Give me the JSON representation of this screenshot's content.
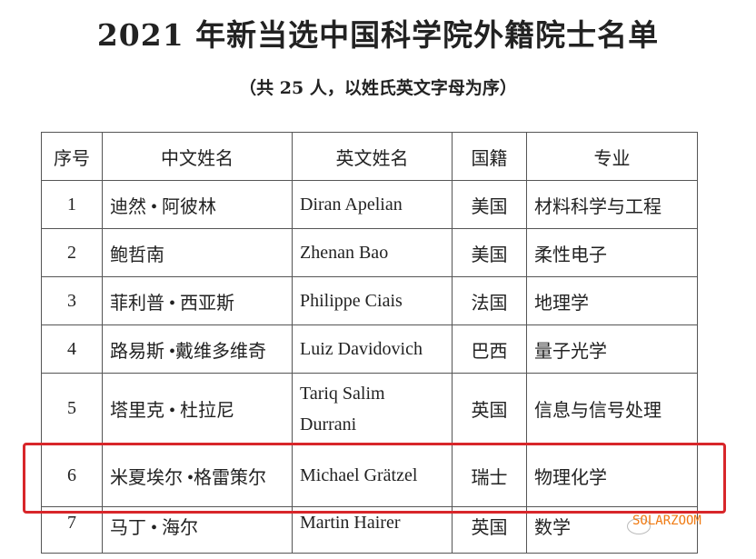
{
  "title": "2021 年新当选中国科学院外籍院士名单",
  "subtitle": "（共 25 人，以姓氏英文字母为序）",
  "headers": [
    "序号",
    "中文姓名",
    "英文姓名",
    "国籍",
    "专业"
  ],
  "rows": [
    [
      "1",
      "迪然 • 阿彼林",
      "Diran Apelian",
      "美国",
      "材料科学与工程"
    ],
    [
      "2",
      "鲍哲南",
      "Zhenan Bao",
      "美国",
      "柔性电子"
    ],
    [
      "3",
      "菲利普 • 西亚斯",
      "Philippe Ciais",
      "法国",
      "地理学"
    ],
    [
      "4",
      "路易斯 •戴维多维奇",
      "Luiz Davidovich",
      "巴西",
      "量子光学"
    ],
    [
      "5",
      "塔里克 • 杜拉尼",
      "Tariq Salim Durrani",
      "英国",
      "信息与信号处理"
    ],
    [
      "6",
      "米夏埃尔 •格雷策尔",
      "Michael Grätzel",
      "瑞士",
      "物理化学"
    ],
    [
      "7",
      "马丁 • 海尔",
      "Martin Hairer",
      "英国",
      "数学"
    ]
  ],
  "highlight_color": "#d8262a",
  "watermark": "SOLARZOOM"
}
